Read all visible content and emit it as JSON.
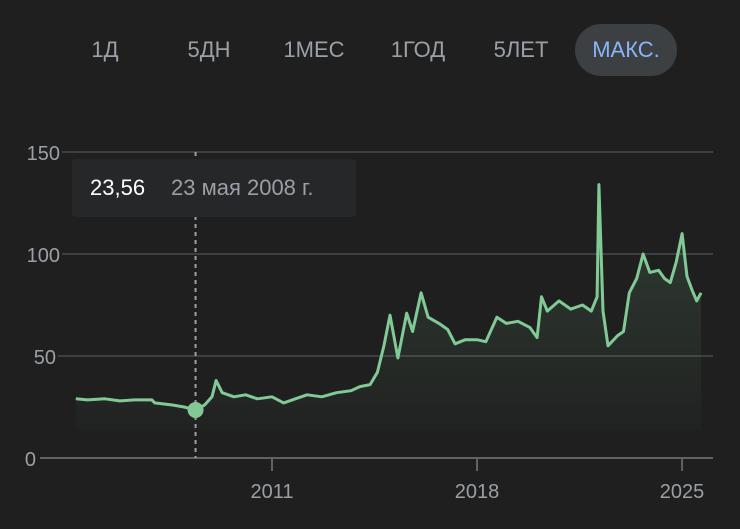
{
  "range_selector": {
    "options": [
      "1Д",
      "5ДН",
      "1МЕС",
      "1ГОД",
      "5ЛЕТ",
      "МАКС."
    ],
    "selected": "МАКС."
  },
  "tooltip": {
    "value": "23,56",
    "date": "23 мая 2008 г."
  },
  "colors": {
    "line": "#81c995",
    "background": "#1f1f1f",
    "selected_text": "#8ab4f8",
    "grid": "#3c4043"
  },
  "chart_data": {
    "type": "area",
    "x_ticks": [
      2011,
      2018,
      2025
    ],
    "x_tick_labels": [
      "2011",
      "2018",
      "2025"
    ],
    "y_ticks": [
      0,
      50,
      100,
      150
    ],
    "y_tick_labels": [
      "0",
      "50",
      "100",
      "150"
    ],
    "ylim": [
      0,
      150
    ],
    "xlim": [
      2004.3,
      2025.7
    ],
    "grid": "horizontal",
    "hover_point": {
      "x": 2008.39,
      "y": 23.56
    },
    "points": [
      [
        2004.3,
        29
      ],
      [
        2004.7,
        28.5
      ],
      [
        2005.3,
        29
      ],
      [
        2005.8,
        28
      ],
      [
        2006.3,
        28.5
      ],
      [
        2006.9,
        28.5
      ],
      [
        2007.0,
        27
      ],
      [
        2007.6,
        26
      ],
      [
        2008.0,
        25
      ],
      [
        2008.39,
        23.56
      ],
      [
        2008.7,
        26
      ],
      [
        2008.95,
        30
      ],
      [
        2009.09,
        38
      ],
      [
        2009.3,
        32
      ],
      [
        2009.7,
        30
      ],
      [
        2010.1,
        31
      ],
      [
        2010.5,
        29
      ],
      [
        2011.0,
        30
      ],
      [
        2011.4,
        27
      ],
      [
        2011.8,
        29
      ],
      [
        2012.2,
        31
      ],
      [
        2012.7,
        30
      ],
      [
        2013.2,
        32
      ],
      [
        2013.7,
        33
      ],
      [
        2014.0,
        35
      ],
      [
        2014.35,
        36
      ],
      [
        2014.6,
        42
      ],
      [
        2014.82,
        55
      ],
      [
        2015.03,
        70
      ],
      [
        2015.3,
        49
      ],
      [
        2015.6,
        71
      ],
      [
        2015.8,
        62
      ],
      [
        2016.09,
        81
      ],
      [
        2016.33,
        69
      ],
      [
        2016.7,
        66
      ],
      [
        2017.0,
        63
      ],
      [
        2017.25,
        56
      ],
      [
        2017.6,
        58
      ],
      [
        2018.0,
        58
      ],
      [
        2018.3,
        57
      ],
      [
        2018.68,
        69
      ],
      [
        2019.0,
        66
      ],
      [
        2019.4,
        67
      ],
      [
        2019.8,
        64
      ],
      [
        2020.05,
        59
      ],
      [
        2020.2,
        79
      ],
      [
        2020.4,
        72
      ],
      [
        2020.8,
        77
      ],
      [
        2021.2,
        73
      ],
      [
        2021.6,
        75
      ],
      [
        2021.9,
        72
      ],
      [
        2022.1,
        79
      ],
      [
        2022.16,
        134
      ],
      [
        2022.3,
        72
      ],
      [
        2022.47,
        55
      ],
      [
        2022.8,
        60
      ],
      [
        2023.0,
        62
      ],
      [
        2023.2,
        81
      ],
      [
        2023.45,
        88
      ],
      [
        2023.67,
        100
      ],
      [
        2023.9,
        91
      ],
      [
        2024.2,
        92
      ],
      [
        2024.4,
        88
      ],
      [
        2024.6,
        86
      ],
      [
        2024.8,
        96
      ],
      [
        2025.0,
        110
      ],
      [
        2025.17,
        89
      ],
      [
        2025.35,
        82
      ],
      [
        2025.5,
        77
      ],
      [
        2025.65,
        81
      ]
    ]
  }
}
